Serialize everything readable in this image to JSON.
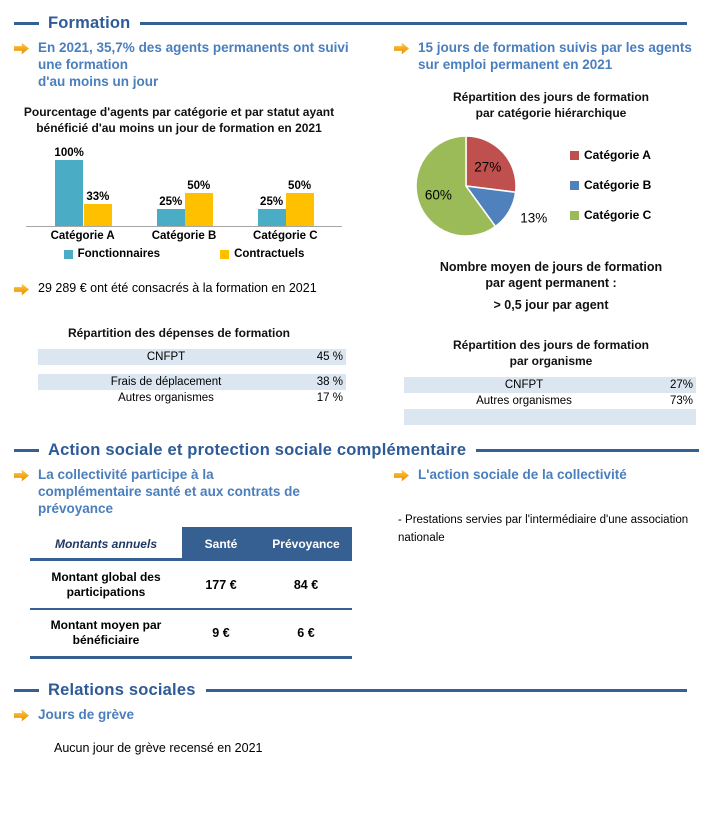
{
  "colors": {
    "section_rule_blue": "#376092",
    "section_title_blue": "#2E5B97",
    "bullet_text_blue": "#4A7EBD",
    "arrow_gold": "#F2A71B",
    "table_row_shade": "#DCE6F1",
    "table_header_bg": "#376092",
    "bar_teal": "#4BACC6",
    "bar_yellow": "#FFC000",
    "pie_red": "#C0504D",
    "pie_blue": "#4F81BD",
    "pie_green": "#9BBB59"
  },
  "formation": {
    "section_title": "Formation",
    "bullet_left": "En 2021, 35,7% des agents permanents ont suivi une formation\nd'au moins un jour",
    "bullet_right": "15 jours de formation suivis par les agents sur emploi permanent en 2021",
    "spend_bullet": "29 289 € ont été consacrés à la formation en 2021",
    "expense_table": {
      "title": "Répartition des dépenses de formation",
      "rows": [
        {
          "label": "CNFPT",
          "value": "45 %"
        },
        {
          "label": "Frais de déplacement",
          "value": "38 %"
        },
        {
          "label": "Autres organismes",
          "value": "17 %"
        }
      ]
    },
    "avg_days": {
      "heading": "Nombre moyen de jours de formation\npar agent permanent :",
      "value_line": "> 0,5 jour par agent"
    },
    "organisme_table": {
      "title": "Répartition des jours de formation\npar organisme",
      "rows": [
        {
          "label": "CNFPT",
          "value": "27%"
        },
        {
          "label": "Autres organismes",
          "value": "73%"
        }
      ]
    }
  },
  "chart_data": [
    {
      "type": "bar",
      "title": "Pourcentage d'agents par catégorie et par statut ayant\nbénéficié d'au moins un jour de formation en 2021",
      "categories": [
        "Catégorie A",
        "Catégorie B",
        "Catégorie C"
      ],
      "series": [
        {
          "name": "Fonctionnaires",
          "color": "#4BACC6",
          "values": [
            100,
            25,
            25
          ]
        },
        {
          "name": "Contractuels",
          "color": "#FFC000",
          "values": [
            33,
            50,
            50
          ]
        }
      ],
      "value_labels": [
        [
          "100%",
          "33%"
        ],
        [
          "25%",
          "50%"
        ],
        [
          "25%",
          "50%"
        ]
      ],
      "ylim": [
        0,
        100
      ],
      "grid": false,
      "legend_position": "bottom"
    },
    {
      "type": "pie",
      "title": "Répartition des jours de formation\npar catégorie hiérarchique",
      "labels": [
        "Catégorie A",
        "Catégorie B",
        "Catégorie C"
      ],
      "values": [
        27,
        13,
        60
      ],
      "value_labels": [
        "27%",
        "13%",
        "60%"
      ],
      "label_inside": [
        true,
        false,
        true
      ],
      "colors": [
        "#C0504D",
        "#4F81BD",
        "#9BBB59"
      ],
      "legend_position": "right"
    }
  ],
  "action_sociale": {
    "section_title": "Action sociale et protection sociale complémentaire",
    "bullet_left": "La collectivité participe à la complémentaire santé et aux contrats de prévoyance",
    "bullet_right": "L'action sociale de la collectivité",
    "note_right": "- Prestations servies par l'intermédiaire d'une association nationale",
    "table": {
      "corner_label": "Montants annuels",
      "col_headers": [
        "Santé",
        "Prévoyance"
      ],
      "rows": [
        {
          "label": "Montant global des\nparticipations",
          "sante": "177 €",
          "prevoyance": "84 €"
        },
        {
          "label": "Montant moyen par\nbénéficiaire",
          "sante": "9 €",
          "prevoyance": "6 €"
        }
      ]
    }
  },
  "relations_sociales": {
    "section_title": "Relations sociales",
    "bullet": "Jours de grève",
    "note": "Aucun jour de grève recensé en 2021"
  }
}
